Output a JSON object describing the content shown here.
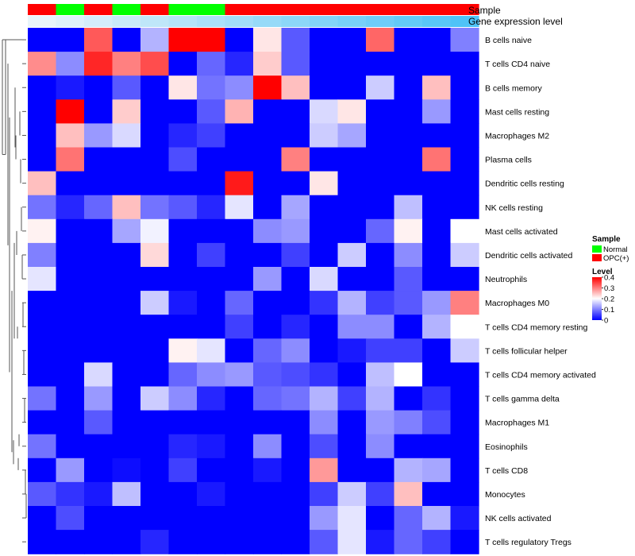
{
  "chart_data": {
    "type": "heatmap",
    "title": "",
    "annotation_tracks": [
      "Sample",
      "Gene expression level"
    ],
    "sample_groups": [
      "OPC(+)",
      "Normal",
      "OPC(+)",
      "Normal",
      "OPC(+)",
      "Normal",
      "Normal",
      "OPC(+)",
      "OPC(+)",
      "OPC(+)",
      "OPC(+)",
      "OPC(+)",
      "OPC(+)",
      "OPC(+)",
      "OPC(+)",
      "OPC(+)"
    ],
    "expression_levels": [
      0.0,
      0.067,
      0.133,
      0.2,
      0.267,
      0.333,
      0.4,
      0.467,
      0.533,
      0.6,
      0.667,
      0.733,
      0.8,
      0.867,
      0.933,
      1.0
    ],
    "rows": [
      "B cells naive",
      "T cells CD4 naive",
      "B cells memory",
      "Mast cells resting",
      "Macrophages M2",
      "Plasma cells",
      "Dendritic cells resting",
      "NK cells resting",
      "Mast cells activated",
      "Dendritic cells activated",
      "Neutrophils",
      "Macrophages M0",
      "T cells CD4 memory resting",
      "T cells follicular helper",
      "T cells CD4 memory activated",
      "T cells gamma delta",
      "Macrophages M1",
      "Eosinophils",
      "T cells CD8",
      "Monocytes",
      "NK cells activated",
      "T cells regulatory  Tregs"
    ],
    "values": [
      [
        0.0,
        0.0,
        0.33,
        0.0,
        0.14,
        0.4,
        0.4,
        0.0,
        0.22,
        0.07,
        0.0,
        0.0,
        0.32,
        0.0,
        0.0,
        0.1
      ],
      [
        0.29,
        0.11,
        0.37,
        0.3,
        0.34,
        0.0,
        0.08,
        0.03,
        0.24,
        0.07,
        0.0,
        0.0,
        0.0,
        0.0,
        0.0,
        0.0
      ],
      [
        0.0,
        0.02,
        0.0,
        0.07,
        0.0,
        0.22,
        0.09,
        0.11,
        0.4,
        0.25,
        0.0,
        0.0,
        0.16,
        0.0,
        0.25,
        0.0
      ],
      [
        0.0,
        0.4,
        0.0,
        0.24,
        0.0,
        0.0,
        0.07,
        0.26,
        0.0,
        0.0,
        0.17,
        0.22,
        0.0,
        0.0,
        0.12,
        0.0
      ],
      [
        0.0,
        0.25,
        0.12,
        0.17,
        0.0,
        0.03,
        0.05,
        0.0,
        0.0,
        0.0,
        0.16,
        0.13,
        0.0,
        0.0,
        0.0,
        0.0
      ],
      [
        0.0,
        0.31,
        0.0,
        0.0,
        0.0,
        0.06,
        0.0,
        0.0,
        0.0,
        0.3,
        0.0,
        0.0,
        0.0,
        0.0,
        0.31,
        0.0
      ],
      [
        0.25,
        0.0,
        0.0,
        0.0,
        0.0,
        0.0,
        0.0,
        0.38,
        0.0,
        0.0,
        0.22,
        0.0,
        0.0,
        0.0,
        0.0,
        0.0
      ],
      [
        0.09,
        0.03,
        0.08,
        0.25,
        0.09,
        0.07,
        0.03,
        0.18,
        0.0,
        0.13,
        0.0,
        0.0,
        0.0,
        0.15,
        0.0,
        0.0
      ],
      [
        0.21,
        0.0,
        0.0,
        0.13,
        0.19,
        0.0,
        0.0,
        0.0,
        0.11,
        0.12,
        0.0,
        0.0,
        0.08,
        0.21,
        0.0,
        0.2
      ],
      [
        0.1,
        0.0,
        0.0,
        0.0,
        0.23,
        0.0,
        0.05,
        0.0,
        0.0,
        0.05,
        0.0,
        0.16,
        0.0,
        0.11,
        0.0,
        0.16
      ],
      [
        0.18,
        0.0,
        0.0,
        0.0,
        0.0,
        0.0,
        0.0,
        0.0,
        0.12,
        0.0,
        0.17,
        0.0,
        0.0,
        0.07,
        0.0,
        0.0
      ],
      [
        0.0,
        0.0,
        0.0,
        0.0,
        0.16,
        0.02,
        0.0,
        0.08,
        0.0,
        0.0,
        0.04,
        0.14,
        0.05,
        0.07,
        0.12,
        0.3
      ],
      [
        0.0,
        0.0,
        0.0,
        0.0,
        0.0,
        0.0,
        0.0,
        0.05,
        0.0,
        0.03,
        0.0,
        0.11,
        0.11,
        0.0,
        0.14,
        0.2
      ],
      [
        0.0,
        0.0,
        0.0,
        0.0,
        0.0,
        0.21,
        0.18,
        0.0,
        0.08,
        0.11,
        0.0,
        0.02,
        0.05,
        0.05,
        0.0,
        0.16
      ],
      [
        0.0,
        0.0,
        0.17,
        0.0,
        0.0,
        0.08,
        0.11,
        0.12,
        0.07,
        0.06,
        0.04,
        0.0,
        0.15,
        0.2,
        0.0,
        0.0
      ],
      [
        0.09,
        0.0,
        0.12,
        0.0,
        0.16,
        0.11,
        0.03,
        0.0,
        0.08,
        0.09,
        0.14,
        0.05,
        0.14,
        0.0,
        0.04,
        0.0
      ],
      [
        0.0,
        0.0,
        0.07,
        0.0,
        0.0,
        0.0,
        0.0,
        0.0,
        0.0,
        0.0,
        0.11,
        0.0,
        0.12,
        0.1,
        0.06,
        0.0
      ],
      [
        0.09,
        0.0,
        0.0,
        0.0,
        0.0,
        0.03,
        0.02,
        0.0,
        0.11,
        0.0,
        0.06,
        0.0,
        0.11,
        0.0,
        0.0,
        0.0
      ],
      [
        0.0,
        0.12,
        0.0,
        0.01,
        0.0,
        0.05,
        0.0,
        0.0,
        0.02,
        0.0,
        0.28,
        0.0,
        0.0,
        0.14,
        0.13,
        0.0
      ],
      [
        0.07,
        0.04,
        0.02,
        0.15,
        0.0,
        0.0,
        0.02,
        0.0,
        0.0,
        0.0,
        0.05,
        0.16,
        0.05,
        0.25,
        0.0,
        0.0
      ],
      [
        0.0,
        0.06,
        0.0,
        0.0,
        0.0,
        0.0,
        0.0,
        0.0,
        0.0,
        0.0,
        0.12,
        0.18,
        0.0,
        0.08,
        0.14,
        0.02
      ],
      [
        0.0,
        0.0,
        0.0,
        0.0,
        0.03,
        0.0,
        0.0,
        0.0,
        0.0,
        0.0,
        0.07,
        0.18,
        0.02,
        0.08,
        0.05,
        0.0
      ]
    ],
    "scale": {
      "min": 0,
      "max": 0.4,
      "ticks": [
        0.4,
        0.3,
        0.2,
        0.1,
        0
      ],
      "tick_labels": [
        "0.4",
        "0.3",
        "0.2",
        "0.1",
        "0"
      ],
      "colors": {
        "low": "#0000ff",
        "mid": "#ffffff",
        "high": "#ff0000"
      }
    },
    "legend": {
      "sample_title": "Sample",
      "sample_items": [
        {
          "label": "Normal",
          "color": "#00ff00"
        },
        {
          "label": "OPC(+)",
          "color": "#ff0000"
        }
      ],
      "level_title": "Level",
      "position": "right"
    },
    "expression_colors": {
      "low": "#e8f4fa",
      "high": "#4fc3f7"
    },
    "dendrogram": "rows"
  }
}
